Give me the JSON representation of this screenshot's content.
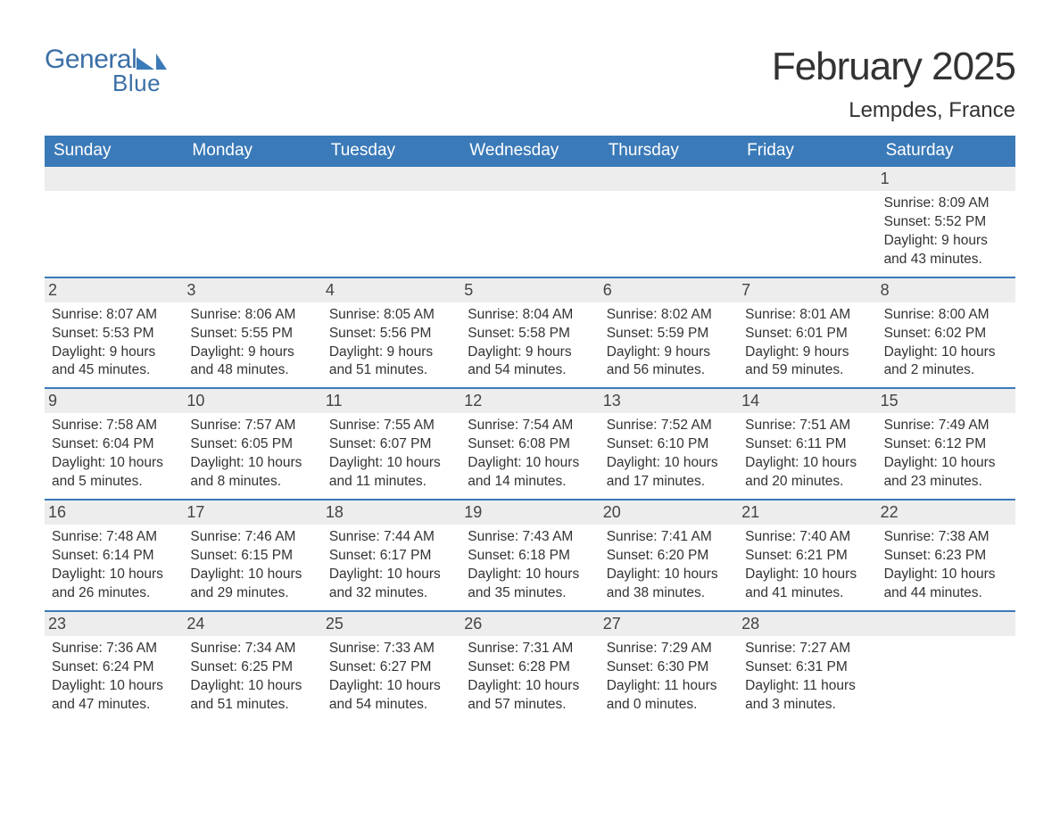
{
  "logo": {
    "text1": "General",
    "text2": "Blue"
  },
  "colors": {
    "brand_blue": "#3b7ab8",
    "logo_blue": "#3b6fa6",
    "header_bg": "#3b7ab8",
    "daynum_bg": "#ededed",
    "text": "#333333",
    "page_bg": "#ffffff"
  },
  "title": "February 2025",
  "location": "Lempdes, France",
  "days_of_week": [
    "Sunday",
    "Monday",
    "Tuesday",
    "Wednesday",
    "Thursday",
    "Friday",
    "Saturday"
  ],
  "weeks": [
    [
      {
        "num": "",
        "sunrise": "",
        "sunset": "",
        "daylight": ""
      },
      {
        "num": "",
        "sunrise": "",
        "sunset": "",
        "daylight": ""
      },
      {
        "num": "",
        "sunrise": "",
        "sunset": "",
        "daylight": ""
      },
      {
        "num": "",
        "sunrise": "",
        "sunset": "",
        "daylight": ""
      },
      {
        "num": "",
        "sunrise": "",
        "sunset": "",
        "daylight": ""
      },
      {
        "num": "",
        "sunrise": "",
        "sunset": "",
        "daylight": ""
      },
      {
        "num": "1",
        "sunrise": "Sunrise: 8:09 AM",
        "sunset": "Sunset: 5:52 PM",
        "daylight": "Daylight: 9 hours and 43 minutes."
      }
    ],
    [
      {
        "num": "2",
        "sunrise": "Sunrise: 8:07 AM",
        "sunset": "Sunset: 5:53 PM",
        "daylight": "Daylight: 9 hours and 45 minutes."
      },
      {
        "num": "3",
        "sunrise": "Sunrise: 8:06 AM",
        "sunset": "Sunset: 5:55 PM",
        "daylight": "Daylight: 9 hours and 48 minutes."
      },
      {
        "num": "4",
        "sunrise": "Sunrise: 8:05 AM",
        "sunset": "Sunset: 5:56 PM",
        "daylight": "Daylight: 9 hours and 51 minutes."
      },
      {
        "num": "5",
        "sunrise": "Sunrise: 8:04 AM",
        "sunset": "Sunset: 5:58 PM",
        "daylight": "Daylight: 9 hours and 54 minutes."
      },
      {
        "num": "6",
        "sunrise": "Sunrise: 8:02 AM",
        "sunset": "Sunset: 5:59 PM",
        "daylight": "Daylight: 9 hours and 56 minutes."
      },
      {
        "num": "7",
        "sunrise": "Sunrise: 8:01 AM",
        "sunset": "Sunset: 6:01 PM",
        "daylight": "Daylight: 9 hours and 59 minutes."
      },
      {
        "num": "8",
        "sunrise": "Sunrise: 8:00 AM",
        "sunset": "Sunset: 6:02 PM",
        "daylight": "Daylight: 10 hours and 2 minutes."
      }
    ],
    [
      {
        "num": "9",
        "sunrise": "Sunrise: 7:58 AM",
        "sunset": "Sunset: 6:04 PM",
        "daylight": "Daylight: 10 hours and 5 minutes."
      },
      {
        "num": "10",
        "sunrise": "Sunrise: 7:57 AM",
        "sunset": "Sunset: 6:05 PM",
        "daylight": "Daylight: 10 hours and 8 minutes."
      },
      {
        "num": "11",
        "sunrise": "Sunrise: 7:55 AM",
        "sunset": "Sunset: 6:07 PM",
        "daylight": "Daylight: 10 hours and 11 minutes."
      },
      {
        "num": "12",
        "sunrise": "Sunrise: 7:54 AM",
        "sunset": "Sunset: 6:08 PM",
        "daylight": "Daylight: 10 hours and 14 minutes."
      },
      {
        "num": "13",
        "sunrise": "Sunrise: 7:52 AM",
        "sunset": "Sunset: 6:10 PM",
        "daylight": "Daylight: 10 hours and 17 minutes."
      },
      {
        "num": "14",
        "sunrise": "Sunrise: 7:51 AM",
        "sunset": "Sunset: 6:11 PM",
        "daylight": "Daylight: 10 hours and 20 minutes."
      },
      {
        "num": "15",
        "sunrise": "Sunrise: 7:49 AM",
        "sunset": "Sunset: 6:12 PM",
        "daylight": "Daylight: 10 hours and 23 minutes."
      }
    ],
    [
      {
        "num": "16",
        "sunrise": "Sunrise: 7:48 AM",
        "sunset": "Sunset: 6:14 PM",
        "daylight": "Daylight: 10 hours and 26 minutes."
      },
      {
        "num": "17",
        "sunrise": "Sunrise: 7:46 AM",
        "sunset": "Sunset: 6:15 PM",
        "daylight": "Daylight: 10 hours and 29 minutes."
      },
      {
        "num": "18",
        "sunrise": "Sunrise: 7:44 AM",
        "sunset": "Sunset: 6:17 PM",
        "daylight": "Daylight: 10 hours and 32 minutes."
      },
      {
        "num": "19",
        "sunrise": "Sunrise: 7:43 AM",
        "sunset": "Sunset: 6:18 PM",
        "daylight": "Daylight: 10 hours and 35 minutes."
      },
      {
        "num": "20",
        "sunrise": "Sunrise: 7:41 AM",
        "sunset": "Sunset: 6:20 PM",
        "daylight": "Daylight: 10 hours and 38 minutes."
      },
      {
        "num": "21",
        "sunrise": "Sunrise: 7:40 AM",
        "sunset": "Sunset: 6:21 PM",
        "daylight": "Daylight: 10 hours and 41 minutes."
      },
      {
        "num": "22",
        "sunrise": "Sunrise: 7:38 AM",
        "sunset": "Sunset: 6:23 PM",
        "daylight": "Daylight: 10 hours and 44 minutes."
      }
    ],
    [
      {
        "num": "23",
        "sunrise": "Sunrise: 7:36 AM",
        "sunset": "Sunset: 6:24 PM",
        "daylight": "Daylight: 10 hours and 47 minutes."
      },
      {
        "num": "24",
        "sunrise": "Sunrise: 7:34 AM",
        "sunset": "Sunset: 6:25 PM",
        "daylight": "Daylight: 10 hours and 51 minutes."
      },
      {
        "num": "25",
        "sunrise": "Sunrise: 7:33 AM",
        "sunset": "Sunset: 6:27 PM",
        "daylight": "Daylight: 10 hours and 54 minutes."
      },
      {
        "num": "26",
        "sunrise": "Sunrise: 7:31 AM",
        "sunset": "Sunset: 6:28 PM",
        "daylight": "Daylight: 10 hours and 57 minutes."
      },
      {
        "num": "27",
        "sunrise": "Sunrise: 7:29 AM",
        "sunset": "Sunset: 6:30 PM",
        "daylight": "Daylight: 11 hours and 0 minutes."
      },
      {
        "num": "28",
        "sunrise": "Sunrise: 7:27 AM",
        "sunset": "Sunset: 6:31 PM",
        "daylight": "Daylight: 11 hours and 3 minutes."
      },
      {
        "num": "",
        "sunrise": "",
        "sunset": "",
        "daylight": ""
      }
    ]
  ]
}
